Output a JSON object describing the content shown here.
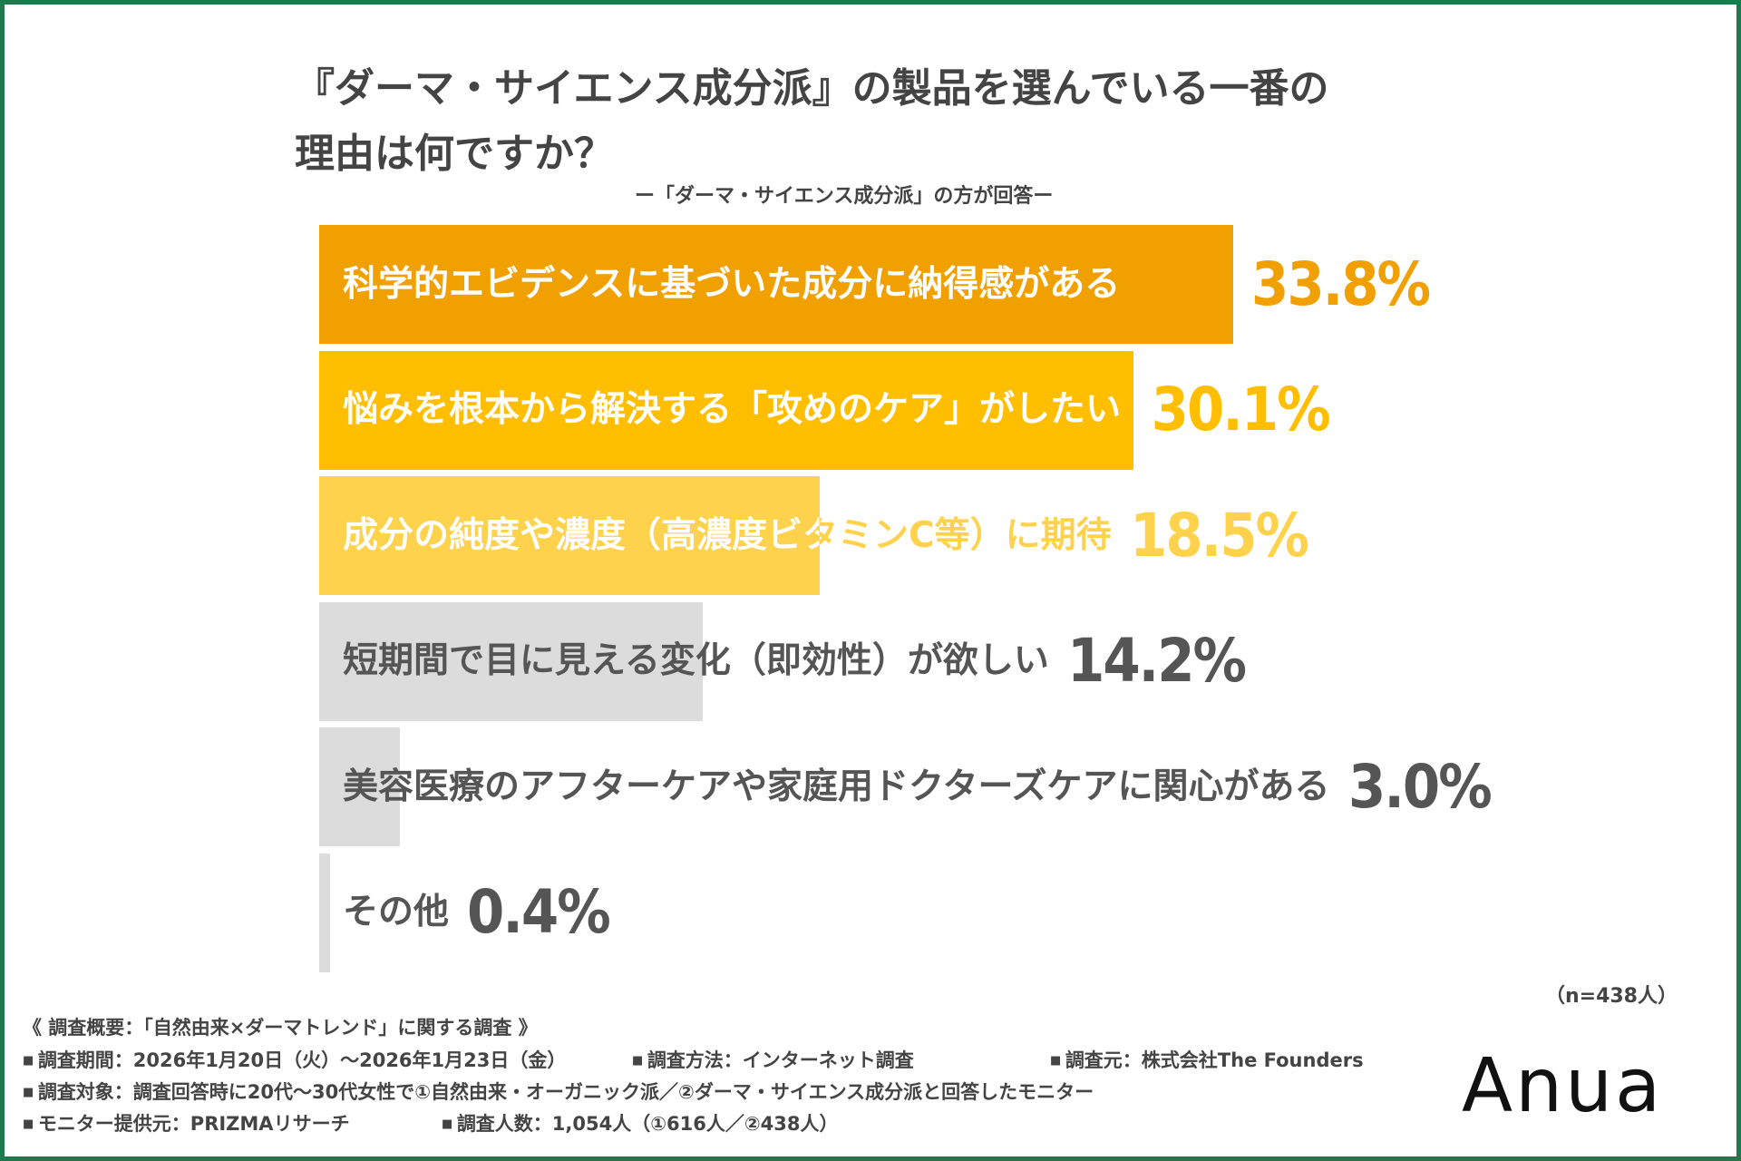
{
  "chart_data": {
    "type": "bar",
    "orientation": "horizontal",
    "title": "『ダーマ・サイエンス成分派』の製品を選んでいる一番の\n理由は何ですか？",
    "subtitle": "ー「ダーマ・サイエンス成分派」の方が回答ー",
    "categories": [
      "科学的エビデンスに基づいた成分に納得感がある",
      "悩みを根本から解決する「攻めのケア」がしたい",
      "成分の純度や濃度（高濃度ビタミンC等）に期待",
      "短期間で目に見える変化（即効性）が欲しい",
      "美容医療のアフターケアや家庭用ドクターズケアに関心がある",
      "その他"
    ],
    "values": [
      33.8,
      30.1,
      18.5,
      14.2,
      3.0,
      0.4
    ],
    "value_labels": [
      "33.8%",
      "30.1%",
      "18.5%",
      "14.2%",
      "3.0%",
      "0.4%"
    ],
    "bar_colors": [
      "#f0a000",
      "#ffbe00",
      "#ffd24d",
      "#dcdcdc",
      "#dcdcdc",
      "#dcdcdc"
    ],
    "value_colors": [
      "#f0a000",
      "#ffbe00",
      "#ffd24d",
      "#555555",
      "#555555",
      "#555555"
    ],
    "label_on_bar_color": "#ffffff",
    "label_off_bar_colors": [
      "#f0a000",
      "#ffbe00",
      "#ffd24d",
      "#555555",
      "#555555",
      "#555555"
    ],
    "xlim": [
      0,
      33.8
    ],
    "grid": false,
    "legend": "none"
  },
  "sample_note": "（n=438人）",
  "footer": {
    "survey_title": "《 調査概要：「自然由来×ダーマトレンド」に関する調査 》",
    "period": "調査期間：2026年1月20日（火）〜2026年1月23日（金）",
    "method": "調査方法：インターネット調査",
    "source": "調査元：株式会社The Founders",
    "target": "調査対象：調査回答時に20代〜30代女性で①自然由来・オーガニック派／②ダーマ・サイエンス成分派と回答したモニター",
    "provider": "モニター提供元：PRIZMAリサーチ",
    "respondents": "調査人数：1,054人（①616人／②438人）"
  },
  "logo": "Anua",
  "colors": {
    "border": "#1e7a4c",
    "text": "#444444"
  }
}
